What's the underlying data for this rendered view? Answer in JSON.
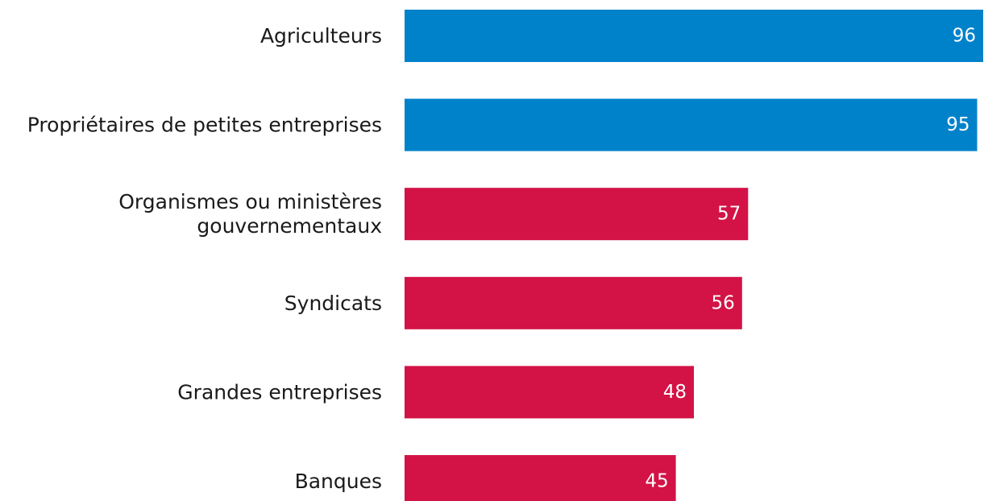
{
  "chart_data": {
    "type": "bar",
    "orientation": "horizontal",
    "categories": [
      [
        "Agriculteurs"
      ],
      [
        "Propriétaires de petites entreprises"
      ],
      [
        "Organismes ou ministères",
        "gouvernementaux"
      ],
      [
        "Syndicats"
      ],
      [
        "Grandes entreprises"
      ],
      [
        "Banques"
      ]
    ],
    "values": [
      96,
      95,
      57,
      56,
      48,
      45
    ],
    "value_labels": [
      "96",
      "95",
      "57",
      "56",
      "48",
      "45"
    ],
    "title": "",
    "xlabel": "",
    "ylabel": "",
    "xlim": [
      0,
      96
    ],
    "grid": false,
    "legend": "none",
    "colors": {
      "high": "#0082ca",
      "low": "#d31245"
    },
    "bar_colors": [
      "high",
      "high",
      "low",
      "low",
      "low",
      "low"
    ]
  }
}
